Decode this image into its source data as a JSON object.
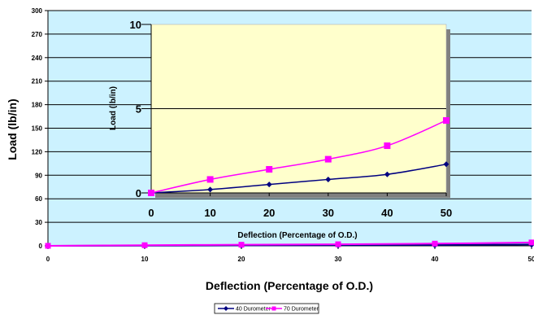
{
  "colors": {
    "plot_background": "#ccf2ff",
    "inset_background": "#ffffcc",
    "inset_shadow": "#808080",
    "gridline": "#000000",
    "series_40": "#000080",
    "series_70": "#ff00ff"
  },
  "chart_data": [
    {
      "type": "line",
      "title": "",
      "xlabel": "Deflection (Percentage of O.D.)",
      "ylabel": "Load (lb/in)",
      "xlim": [
        0,
        50
      ],
      "ylim": [
        0,
        300
      ],
      "xticks": [
        0,
        10,
        20,
        30,
        40,
        50
      ],
      "yticks": [
        0,
        30,
        60,
        90,
        120,
        150,
        180,
        210,
        240,
        270,
        300
      ],
      "xtick_labels": [
        "0",
        "10",
        "20",
        "30",
        "40",
        "50"
      ],
      "ytick_labels": [
        "0",
        "30",
        "60",
        "90",
        "120",
        "150",
        "180",
        "210",
        "240",
        "270",
        "300"
      ],
      "grid": true,
      "legend_placement": "bottom-center",
      "series": [
        {
          "name": "40 Durometer",
          "marker": "diamond",
          "color": "#000080",
          "x": [
            0,
            10,
            20,
            30,
            40,
            50
          ],
          "y": [
            0,
            0.2,
            0.5,
            0.8,
            1.1,
            1.7
          ]
        },
        {
          "name": "70 Durometer",
          "marker": "square",
          "color": "#ff00ff",
          "x": [
            0,
            10,
            20,
            30,
            40,
            50
          ],
          "y": [
            0,
            0.8,
            1.4,
            2.0,
            2.8,
            4.3
          ]
        }
      ]
    },
    {
      "type": "line",
      "title": "",
      "xlabel": "Deflection (Percentage of O.D.)",
      "ylabel": "Load (lb/in)",
      "xlim": [
        0,
        50
      ],
      "ylim": [
        0,
        10
      ],
      "xticks": [
        0,
        10,
        20,
        30,
        40,
        50
      ],
      "yticks": [
        0,
        5,
        10
      ],
      "xtick_labels": [
        "0",
        "10",
        "20",
        "30",
        "40",
        "50"
      ],
      "ytick_labels": [
        "0",
        "5",
        "10"
      ],
      "grid": true,
      "legend_placement": "none",
      "series": [
        {
          "name": "40 Durometer",
          "marker": "diamond",
          "color": "#000080",
          "x": [
            0,
            10,
            20,
            30,
            40,
            50
          ],
          "y": [
            0,
            0.2,
            0.5,
            0.8,
            1.1,
            1.7
          ]
        },
        {
          "name": "70 Durometer",
          "marker": "square",
          "color": "#ff00ff",
          "x": [
            0,
            10,
            20,
            30,
            40,
            50
          ],
          "y": [
            0,
            0.8,
            1.4,
            2.0,
            2.8,
            4.3
          ]
        }
      ]
    }
  ]
}
